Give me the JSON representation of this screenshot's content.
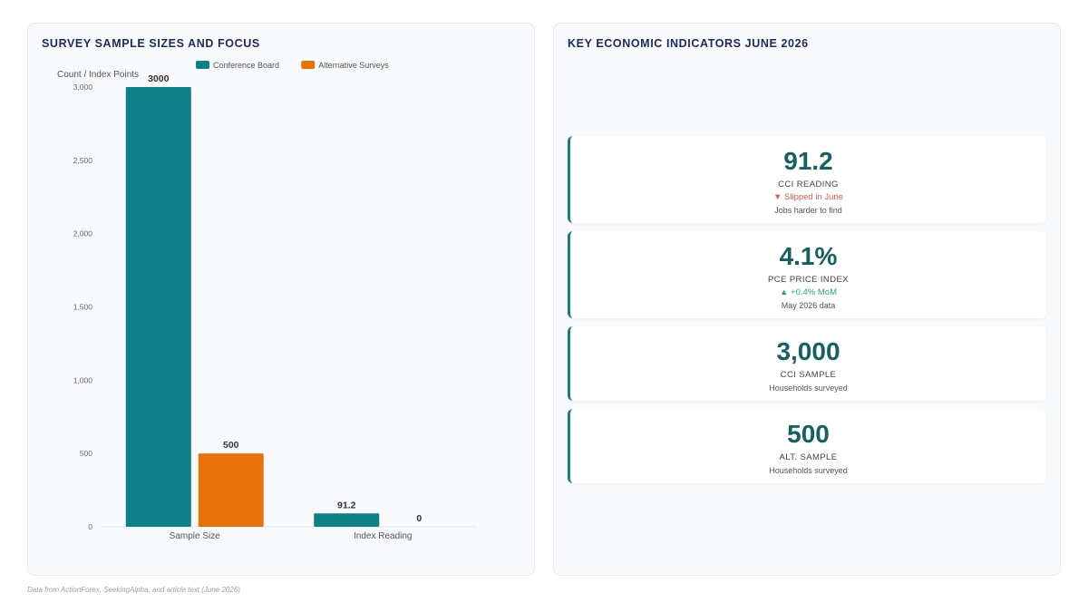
{
  "chart_panel": {
    "title": "SURVEY SAMPLE SIZES AND FOCUS"
  },
  "kpi_panel": {
    "title": "KEY ECONOMIC INDICATORS JUNE 2026"
  },
  "chart_data": {
    "type": "bar",
    "ylabel": "Count / Index Points",
    "xlabel": "",
    "categories": [
      "Sample Size",
      "Index Reading"
    ],
    "series": [
      {
        "name": "Conference Board",
        "color": "#0f8087",
        "values": [
          3000,
          91.2
        ],
        "labels": [
          "3000",
          "91.2"
        ]
      },
      {
        "name": "Alternative Surveys",
        "color": "#e8730c",
        "values": [
          500,
          0
        ],
        "labels": [
          "500",
          "0"
        ]
      }
    ],
    "ylim": [
      0,
      3000
    ],
    "yticks": [
      0,
      500,
      1000,
      1500,
      2000,
      2500,
      3000
    ],
    "ytick_labels": [
      "0",
      "500",
      "1,000",
      "1,500",
      "2,000",
      "2,500",
      "3,000"
    ],
    "legend_position": "top-center",
    "grid": false
  },
  "kpis": [
    {
      "value": "91.2",
      "label": "CCI READING",
      "trend": "▼ Slipped in June",
      "trend_dir": "down",
      "note": "Jobs harder to find"
    },
    {
      "value": "4.1%",
      "label": "PCE PRICE INDEX",
      "trend": "▲ +0.4% MoM",
      "trend_dir": "up",
      "note": "May 2026 data"
    },
    {
      "value": "3,000",
      "label": "CCI SAMPLE",
      "trend": "",
      "trend_dir": "",
      "note": "Households surveyed"
    },
    {
      "value": "500",
      "label": "ALT. SAMPLE",
      "trend": "",
      "trend_dir": "",
      "note": "Households surveyed"
    }
  ],
  "footer": "Data from ActionForex, SeekingAlpha, and article text (June 2026)"
}
